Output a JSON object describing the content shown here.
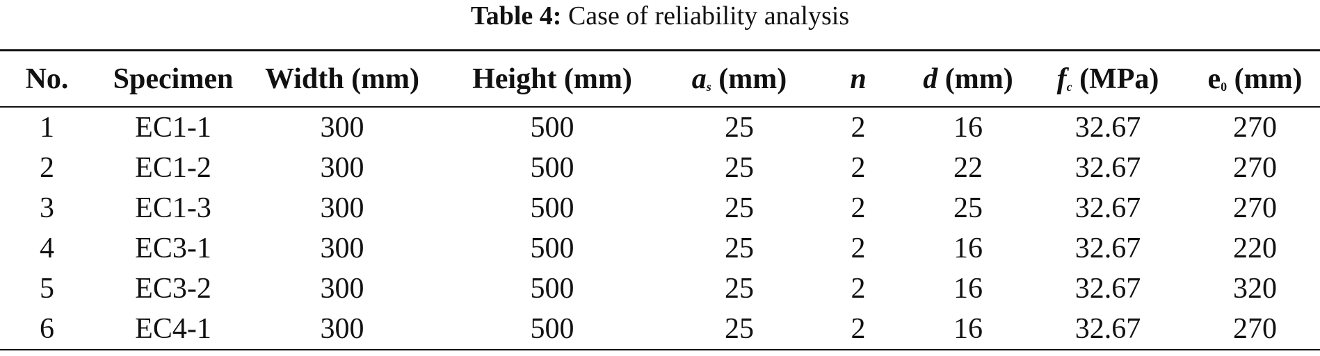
{
  "caption": {
    "label": "Table 4:",
    "text": "Case of reliability analysis"
  },
  "table": {
    "headers": [
      {
        "main": "No.",
        "sub": "",
        "unit": ""
      },
      {
        "main": "Specimen",
        "sub": "",
        "unit": ""
      },
      {
        "main": "Width (mm)",
        "sub": "",
        "unit": ""
      },
      {
        "main": "Height (mm)",
        "sub": "",
        "unit": ""
      },
      {
        "main": "a",
        "sub": "s",
        "unit": " (mm)"
      },
      {
        "main": "n",
        "sub": "",
        "unit": ""
      },
      {
        "main": "d",
        "sub": "",
        "unit": " (mm)"
      },
      {
        "main": "f",
        "sub": "c",
        "unit": " (MPa)"
      },
      {
        "main": "e",
        "sub": "0",
        "unit": " (mm)"
      }
    ],
    "rows": [
      [
        "1",
        "EC1-1",
        "300",
        "500",
        "25",
        "2",
        "16",
        "32.67",
        "270"
      ],
      [
        "2",
        "EC1-2",
        "300",
        "500",
        "25",
        "2",
        "22",
        "32.67",
        "270"
      ],
      [
        "3",
        "EC1-3",
        "300",
        "500",
        "25",
        "2",
        "25",
        "32.67",
        "270"
      ],
      [
        "4",
        "EC3-1",
        "300",
        "500",
        "25",
        "2",
        "16",
        "32.67",
        "220"
      ],
      [
        "5",
        "EC3-2",
        "300",
        "500",
        "25",
        "2",
        "16",
        "32.67",
        "320"
      ],
      [
        "6",
        "EC4-1",
        "300",
        "500",
        "25",
        "2",
        "16",
        "32.67",
        "270"
      ]
    ]
  }
}
